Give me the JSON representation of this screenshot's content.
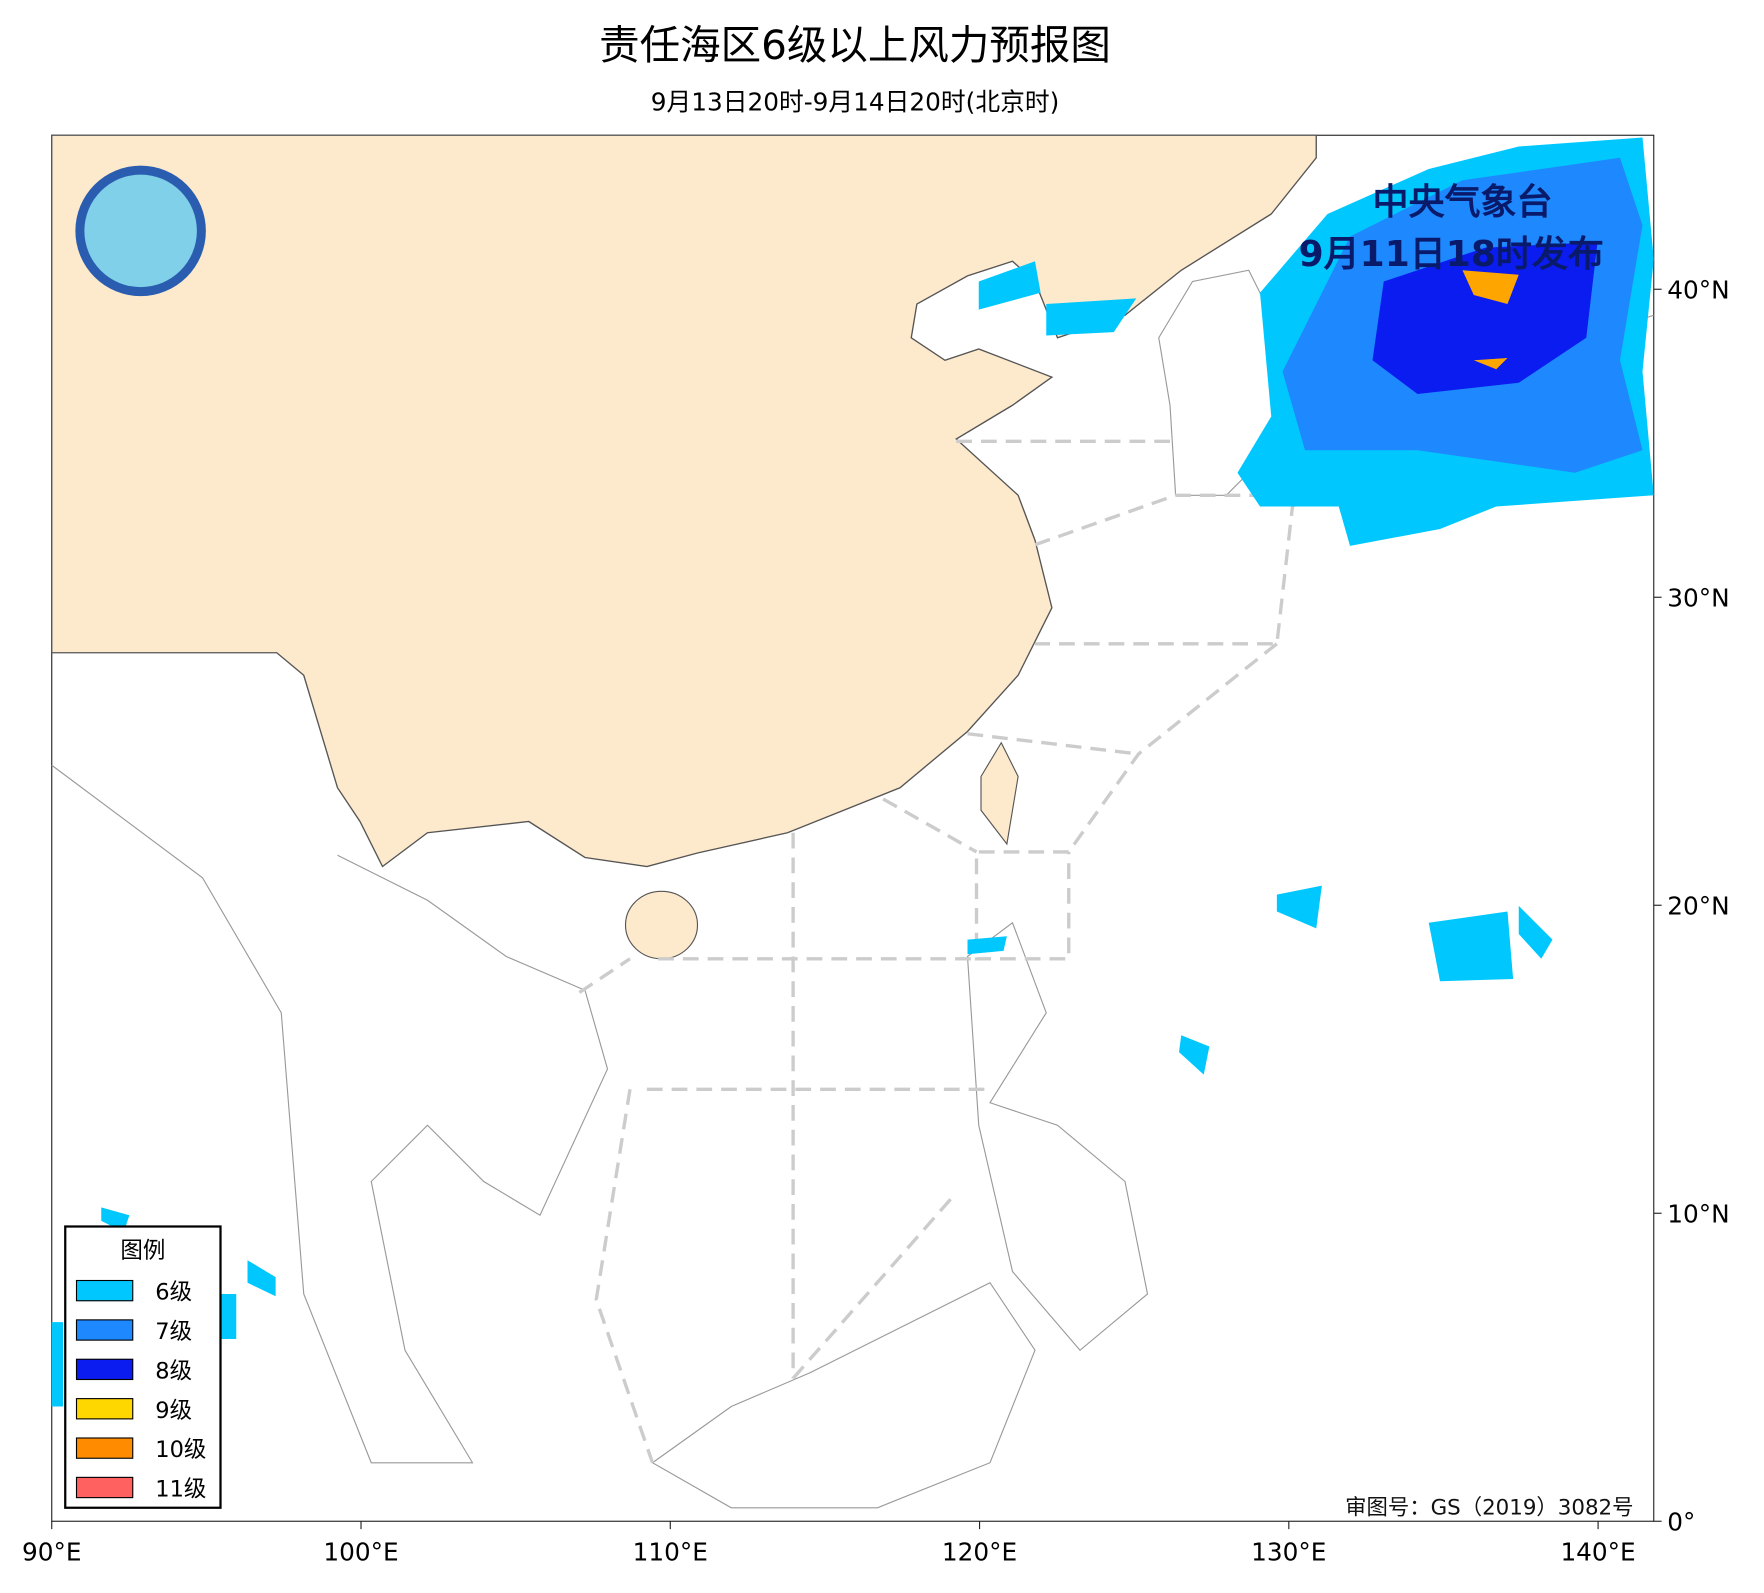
{
  "header": {
    "title": "责任海区6级以上风力预报图",
    "subtitle": "9月13日20时-9月14日20时(北京时)"
  },
  "map": {
    "xlim": [
      90,
      141.8
    ],
    "ylim": [
      0,
      45
    ],
    "xticks": [
      {
        "value": 90,
        "label": "90°E"
      },
      {
        "value": 100,
        "label": "100°E"
      },
      {
        "value": 110,
        "label": "110°E"
      },
      {
        "value": 120,
        "label": "120°E"
      },
      {
        "value": 130,
        "label": "130°E"
      },
      {
        "value": 140,
        "label": "140°E"
      }
    ],
    "yticks": [
      {
        "value": 0,
        "label": "0°"
      },
      {
        "value": 10,
        "label": "10°N"
      },
      {
        "value": 20,
        "label": "20°N"
      },
      {
        "value": 30,
        "label": "30°N"
      },
      {
        "value": 40,
        "label": "40°N"
      }
    ],
    "publisher": "中央气象台",
    "issued": "9月11日18时发布",
    "review_number": "审图号：GS（2019）3082号"
  },
  "legend": {
    "title": "图例",
    "items": [
      {
        "label": "6级",
        "color": "#00c8ff"
      },
      {
        "label": "7级",
        "color": "#1e88ff"
      },
      {
        "label": "8级",
        "color": "#0a1cf0"
      },
      {
        "label": "9级",
        "color": "#ffd700"
      },
      {
        "label": "10级",
        "color": "#ff8c00"
      },
      {
        "label": "11级",
        "color": "#ff6060"
      }
    ]
  }
}
